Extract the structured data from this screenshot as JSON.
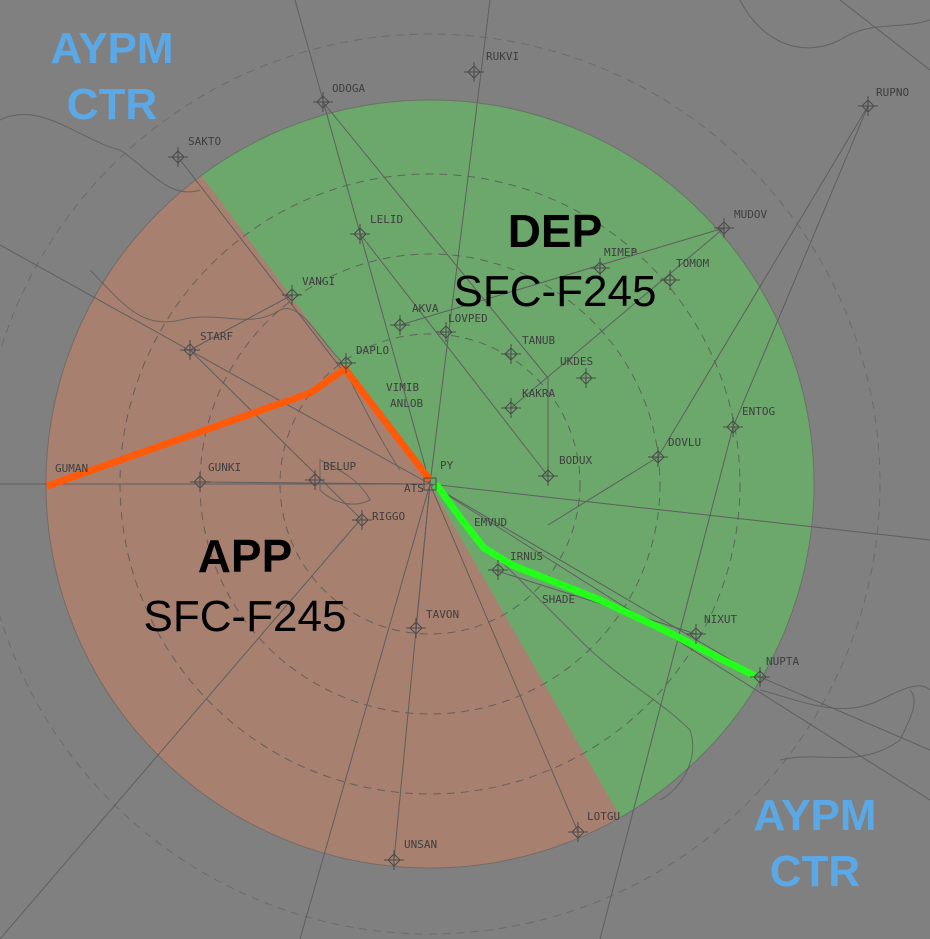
{
  "airspace": {
    "ctr_labels": [
      {
        "line1": "AYPM",
        "line2": "CTR"
      },
      {
        "line1": "AYPM",
        "line2": "CTR"
      }
    ],
    "sectors": {
      "dep": {
        "name": "DEP",
        "altitude": "SFC-F245",
        "color": "#6ca86c"
      },
      "app": {
        "name": "APP",
        "altitude": "SFC-F245",
        "color": "#a88070"
      }
    },
    "boundary_colors": {
      "app_side": "#ff5a0a",
      "dep_side": "#22ff1a"
    },
    "background_color": "#808080"
  },
  "fixes": [
    {
      "name": "RUKVI",
      "icon": "waypoint-icon"
    },
    {
      "name": "ODOGA",
      "icon": "waypoint-icon"
    },
    {
      "name": "RUPNO",
      "icon": "waypoint-icon"
    },
    {
      "name": "SAKTO",
      "icon": "waypoint-icon"
    },
    {
      "name": "LELID",
      "icon": "waypoint-icon"
    },
    {
      "name": "MUDOV",
      "icon": "waypoint-icon"
    },
    {
      "name": "MIMEP",
      "icon": "waypoint-icon"
    },
    {
      "name": "TOMOM",
      "icon": "waypoint-icon"
    },
    {
      "name": "VANGI",
      "icon": "waypoint-icon"
    },
    {
      "name": "AKVA",
      "icon": "waypoint-icon"
    },
    {
      "name": "LOVPED",
      "icon": "waypoint-icon"
    },
    {
      "name": "STARF",
      "icon": "waypoint-icon"
    },
    {
      "name": "TANUB",
      "icon": "waypoint-icon"
    },
    {
      "name": "DAPLO",
      "icon": "waypoint-icon"
    },
    {
      "name": "UKDES",
      "icon": "waypoint-icon"
    },
    {
      "name": "VIMIB",
      "icon": "waypoint-icon"
    },
    {
      "name": "ANLOB",
      "icon": "waypoint-icon"
    },
    {
      "name": "KAKRA",
      "icon": "waypoint-icon"
    },
    {
      "name": "ENTOG",
      "icon": "waypoint-icon"
    },
    {
      "name": "DOVLU",
      "icon": "waypoint-icon"
    },
    {
      "name": "PY",
      "icon": "navaid-icon"
    },
    {
      "name": "BODUX",
      "icon": "waypoint-icon"
    },
    {
      "name": "GUMAN",
      "icon": "waypoint-icon"
    },
    {
      "name": "GUNKI",
      "icon": "waypoint-icon"
    },
    {
      "name": "BELUP",
      "icon": "waypoint-icon"
    },
    {
      "name": "ATS",
      "icon": "waypoint-icon"
    },
    {
      "name": "RIGGO",
      "icon": "waypoint-icon"
    },
    {
      "name": "EMVUD",
      "icon": "waypoint-icon"
    },
    {
      "name": "IRNUS",
      "icon": "waypoint-icon"
    },
    {
      "name": "SHADE",
      "icon": "waypoint-icon"
    },
    {
      "name": "NIXUT",
      "icon": "waypoint-icon"
    },
    {
      "name": "NUPTA",
      "icon": "waypoint-icon"
    },
    {
      "name": "TAVON",
      "icon": "waypoint-icon"
    },
    {
      "name": "LOTGU",
      "icon": "waypoint-icon"
    },
    {
      "name": "UNSAN",
      "icon": "waypoint-icon"
    }
  ]
}
